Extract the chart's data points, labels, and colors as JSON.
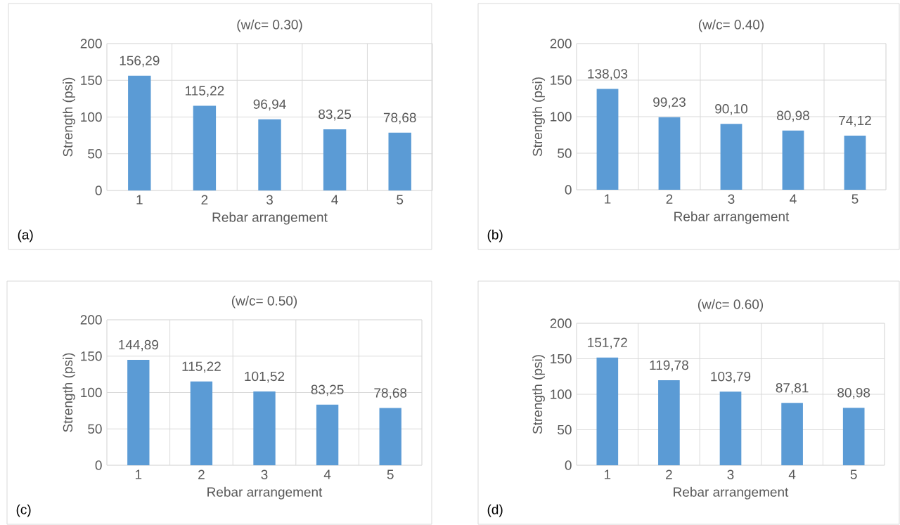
{
  "chart_data": [
    {
      "type": "bar",
      "title": "(w/c= 0.30)",
      "xlabel": "Rebar arrangement",
      "ylabel": "Strength (psi)",
      "categories": [
        "1",
        "2",
        "3",
        "4",
        "5"
      ],
      "values": [
        156.29,
        115.22,
        96.94,
        83.25,
        78.68
      ],
      "value_labels": [
        "156,29",
        "115,22",
        "96,94",
        "83,25",
        "78,68"
      ],
      "color": "#5b9bd5",
      "ylim": [
        0,
        200
      ],
      "yticks": [
        0,
        50,
        100,
        150,
        200
      ],
      "grid": true,
      "annotations": [
        "(a)"
      ]
    },
    {
      "type": "bar",
      "title": "(w/c= 0.40)",
      "xlabel": "Rebar arrangement",
      "ylabel": "Strength (psi)",
      "categories": [
        "1",
        "2",
        "3",
        "4",
        "5"
      ],
      "values": [
        138.03,
        99.23,
        90.1,
        80.98,
        74.12
      ],
      "value_labels": [
        "138,03",
        "99,23",
        "90,10",
        "80,98",
        "74,12"
      ],
      "color": "#5b9bd5",
      "ylim": [
        0,
        200
      ],
      "yticks": [
        0,
        50,
        100,
        150,
        200
      ],
      "grid": true,
      "annotations": [
        "(b)"
      ]
    },
    {
      "type": "bar",
      "title": "(w/c= 0.50)",
      "xlabel": "Rebar arrangement",
      "ylabel": "Strength (psi)",
      "categories": [
        "1",
        "2",
        "3",
        "4",
        "5"
      ],
      "values": [
        144.89,
        115.22,
        101.52,
        83.25,
        78.68
      ],
      "value_labels": [
        "144,89",
        "115,22",
        "101,52",
        "83,25",
        "78,68"
      ],
      "color": "#5b9bd5",
      "ylim": [
        0,
        200
      ],
      "yticks": [
        0,
        50,
        100,
        150,
        200
      ],
      "grid": true,
      "annotations": [
        "(c)"
      ]
    },
    {
      "type": "bar",
      "title": "(w/c= 0.60)",
      "xlabel": "Rebar arrangement",
      "ylabel": "Strength (psi)",
      "categories": [
        "1",
        "2",
        "3",
        "4",
        "5"
      ],
      "values": [
        151.72,
        119.78,
        103.79,
        87.81,
        80.98
      ],
      "value_labels": [
        "151,72",
        "119,78",
        "103,79",
        "87,81",
        "80,98"
      ],
      "color": "#5b9bd5",
      "ylim": [
        0,
        200
      ],
      "yticks": [
        0,
        50,
        100,
        150,
        200
      ],
      "grid": true,
      "annotations": [
        "(d)"
      ]
    }
  ]
}
